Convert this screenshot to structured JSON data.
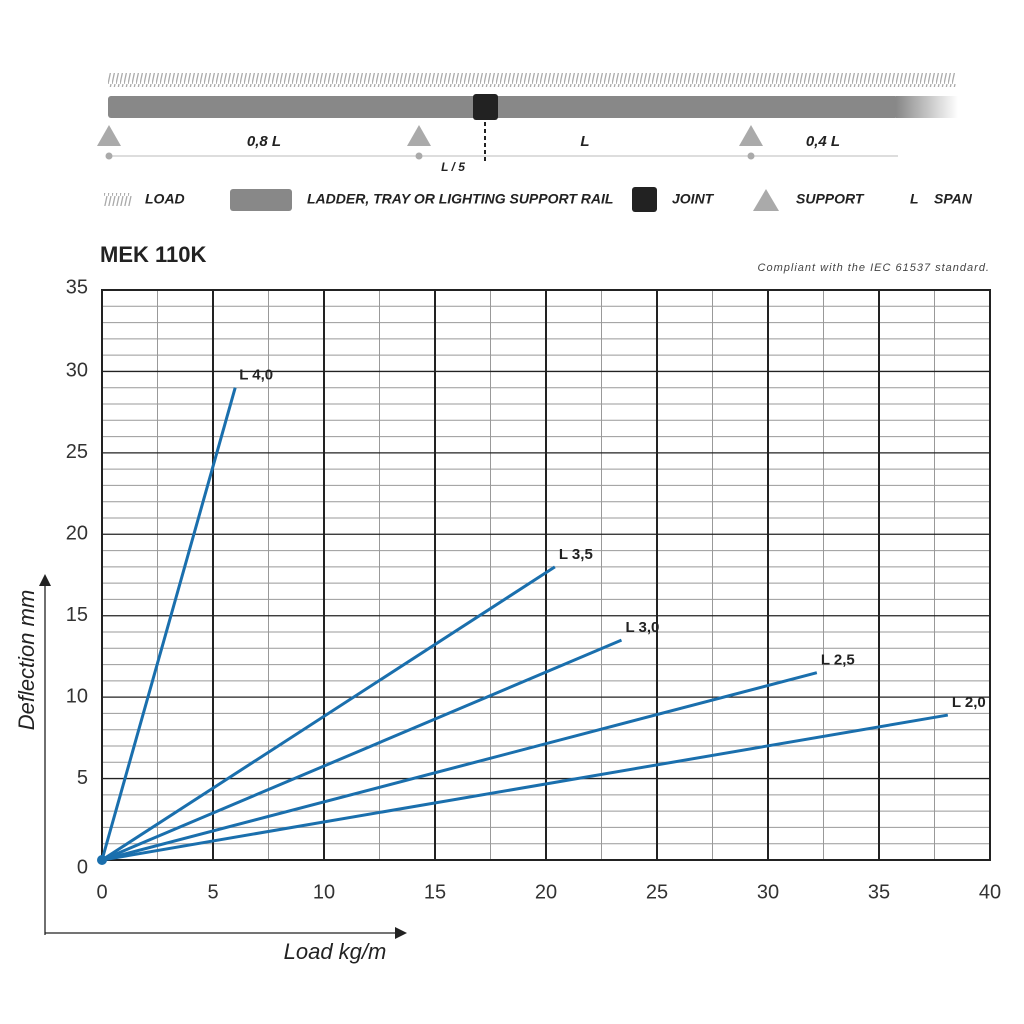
{
  "diagram": {
    "spans": [
      "0,8 L",
      "L",
      "0,4 L"
    ],
    "offset": "L / 5",
    "legend": {
      "load": "LOAD",
      "rail": "LADDER, TRAY OR LIGHTING SUPPORT RAIL",
      "joint": "JOINT",
      "support": "SUPPORT",
      "l": "L",
      "span": "SPAN"
    }
  },
  "chart_data": {
    "type": "line",
    "title": "MEK 110K",
    "subtitle": "Compliant with the IEC 61537 standard.",
    "x_label": "Load kg/m",
    "y_label": "Deflection mm",
    "xlim": [
      0,
      40
    ],
    "ylim": [
      0,
      35
    ],
    "xticks": [
      0,
      5,
      10,
      15,
      20,
      25,
      30,
      35,
      40
    ],
    "yticks": [
      0,
      5,
      10,
      15,
      20,
      25,
      30,
      35
    ],
    "grid": true,
    "series": [
      {
        "name": "L 4,0",
        "color": "#1a6fad",
        "x": [
          0,
          6.0
        ],
        "values": [
          0,
          29.0
        ]
      },
      {
        "name": "L 3,5",
        "color": "#1a6fad",
        "x": [
          0,
          20.4
        ],
        "values": [
          0,
          18.0
        ]
      },
      {
        "name": "L 3,0",
        "color": "#1a6fad",
        "x": [
          0,
          23.4
        ],
        "values": [
          0,
          13.5
        ]
      },
      {
        "name": "L 2,5",
        "color": "#1a6fad",
        "x": [
          0,
          32.2
        ],
        "values": [
          0,
          11.5
        ]
      },
      {
        "name": "L 2,0",
        "color": "#1a6fad",
        "x": [
          0,
          38.1
        ],
        "values": [
          0,
          8.9
        ]
      }
    ]
  }
}
